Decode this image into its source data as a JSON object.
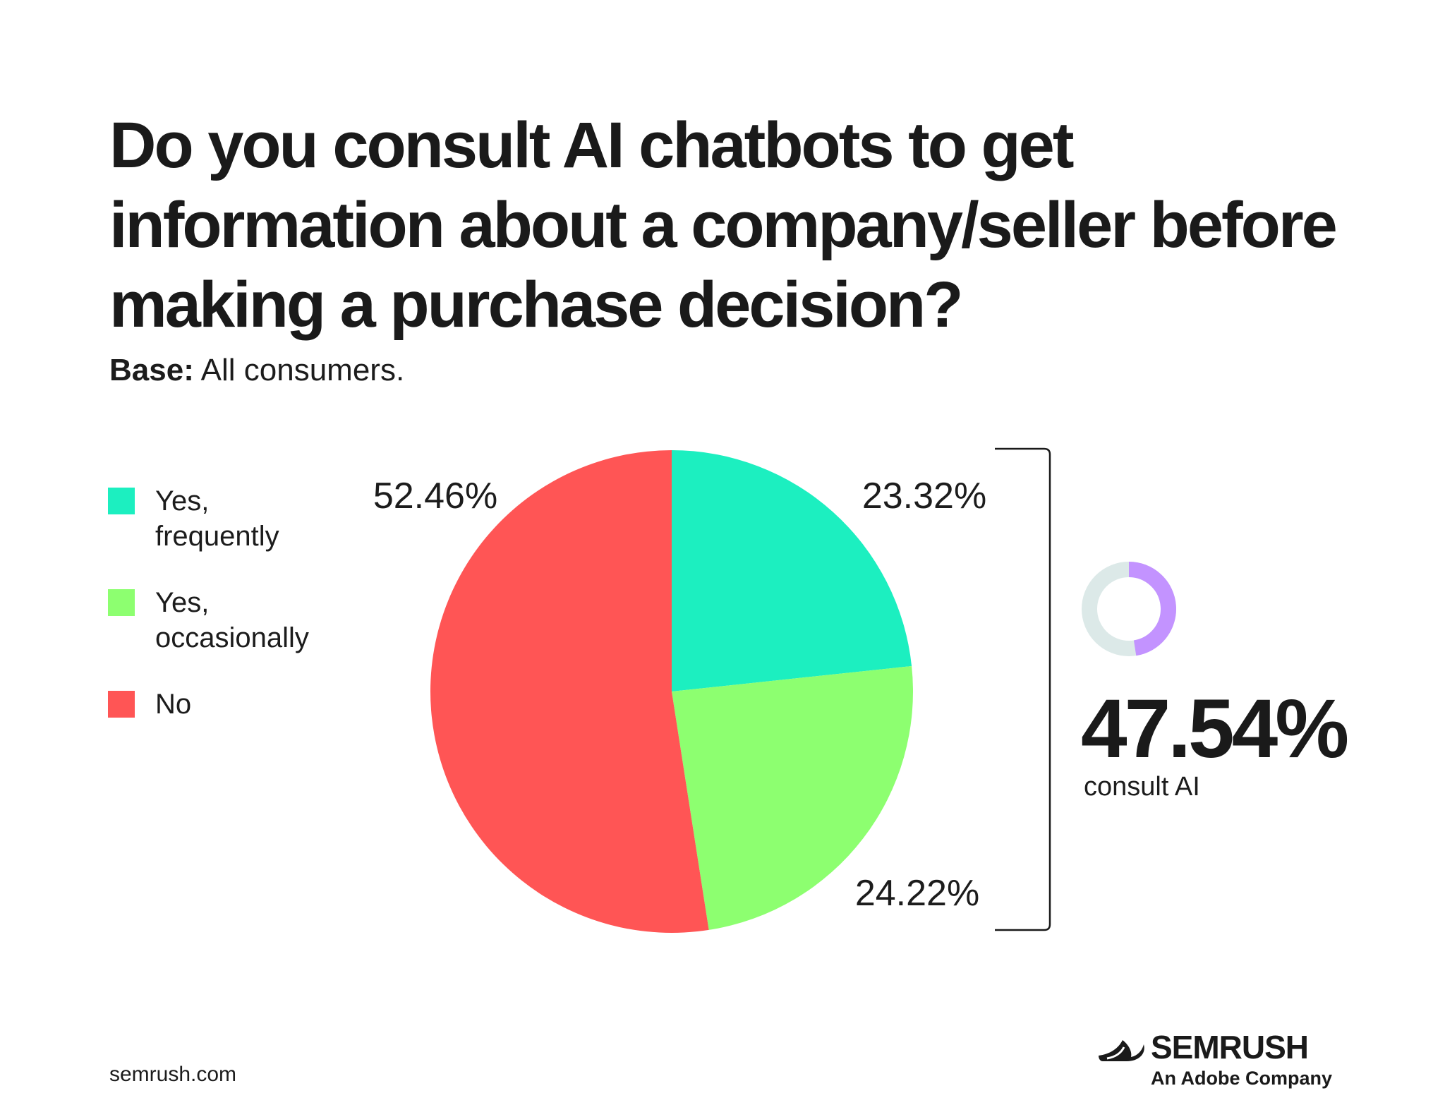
{
  "title": "Do you consult AI chatbots to get information about a company/seller before making a purchase decision?",
  "base": {
    "label": "Base:",
    "text": "All consumers."
  },
  "colors": {
    "frequently": "#1CEFC0",
    "occasionally": "#8DFF70",
    "no": "#FF5555",
    "donut_fill": "#C393FF",
    "donut_track": "#DCE9E8"
  },
  "chart_data": {
    "type": "pie",
    "categories": [
      "Yes,\nfrequently",
      "Yes,\noccasionally",
      "No"
    ],
    "values": [
      23.32,
      24.22,
      52.46
    ],
    "data_labels": [
      "23.32%",
      "24.22%",
      "52.46%"
    ],
    "colors": [
      "#1CEFC0",
      "#8DFF70",
      "#FF5555"
    ],
    "legend_position": "left"
  },
  "summary": {
    "value": "47.54%",
    "fraction": 0.4754,
    "caption": "consult AI"
  },
  "footer": {
    "url": "semrush.com",
    "logo": "SEMRUSH",
    "logo_sub": "An Adobe Company"
  }
}
